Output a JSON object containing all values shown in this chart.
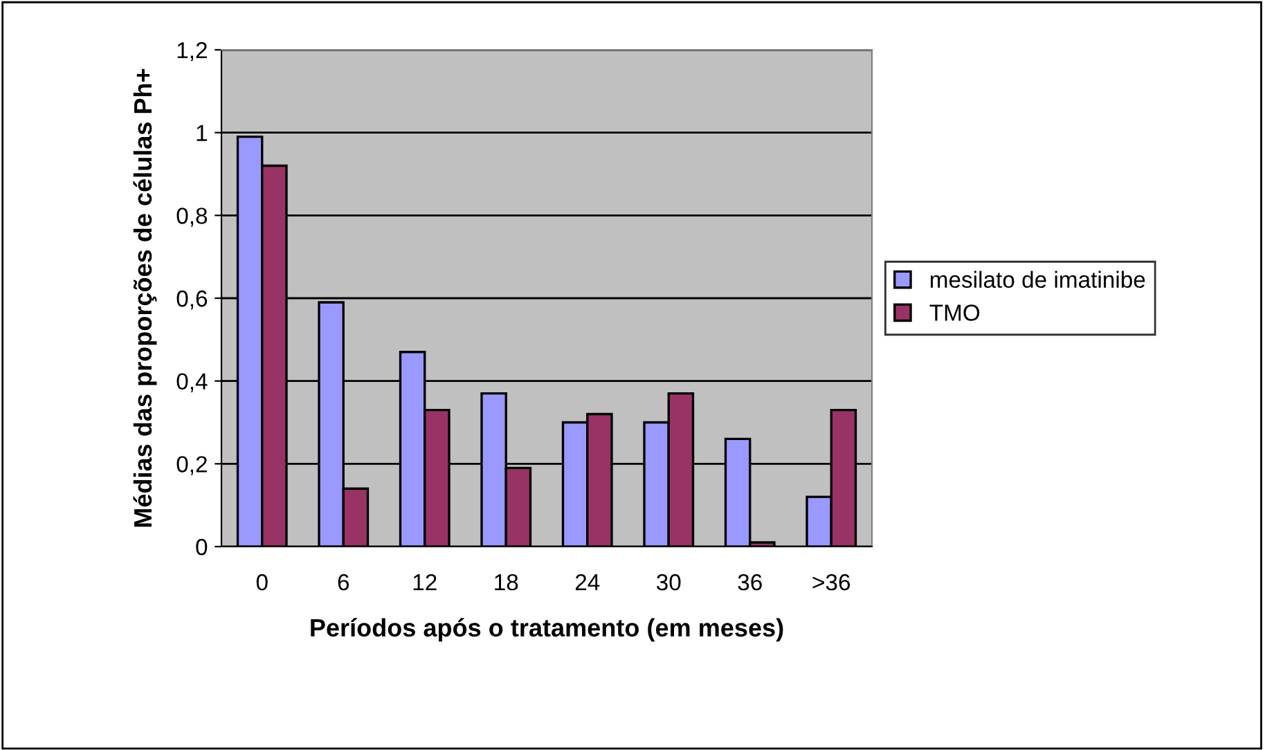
{
  "chart_data": {
    "type": "bar",
    "xlabel": "Períodos após o tratamento (em meses)",
    "ylabel": "Médias das proporções de células Ph+",
    "categories": [
      "0",
      "6",
      "12",
      "18",
      "24",
      "30",
      "36",
      ">36"
    ],
    "series": [
      {
        "name": "mesilato de imatinibe",
        "color": "#9999ff",
        "values": [
          0.99,
          0.59,
          0.47,
          0.37,
          0.3,
          0.3,
          0.26,
          0.12
        ]
      },
      {
        "name": "TMO",
        "color": "#993366",
        "values": [
          0.92,
          0.14,
          0.33,
          0.19,
          0.32,
          0.37,
          0.01,
          0.33
        ]
      }
    ],
    "ylim": [
      0,
      1.2
    ],
    "yticks": [
      {
        "value": 0,
        "label": "0"
      },
      {
        "value": 0.2,
        "label": "0,2"
      },
      {
        "value": 0.4,
        "label": "0,4"
      },
      {
        "value": 0.6,
        "label": "0,6"
      },
      {
        "value": 0.8,
        "label": "0,8"
      },
      {
        "value": 1,
        "label": "1"
      },
      {
        "value": 1.2,
        "label": "1,2"
      }
    ],
    "grid": "y",
    "legend": "right"
  }
}
